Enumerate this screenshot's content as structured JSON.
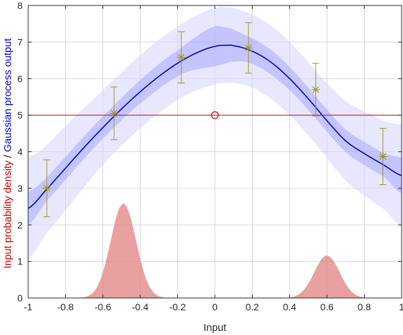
{
  "chart_data": {
    "type": "line",
    "xlabel": "Input",
    "ylabel_parts": [
      {
        "text": "Input probability density",
        "color": "#cc0000"
      },
      {
        "text": " / ",
        "color": "#000000"
      },
      {
        "text": "Gaussian process output",
        "color": "#0000cc"
      }
    ],
    "xlim": [
      -1,
      1
    ],
    "ylim": [
      0,
      8
    ],
    "xticks": [
      -1,
      -0.8,
      -0.6,
      -0.4,
      -0.2,
      0,
      0.2,
      0.4,
      0.6,
      0.8,
      1
    ],
    "xtick_labels": [
      "-1",
      "-0.8",
      "-0.6",
      "-0.4",
      "-0.2",
      "0",
      "0.2",
      "0.4",
      "0.6",
      "0.8",
      "1"
    ],
    "yticks": [
      0,
      1,
      2,
      3,
      4,
      5,
      6,
      7,
      8
    ],
    "ytick_labels": [
      "0",
      "1",
      "2",
      "3",
      "4",
      "5",
      "6",
      "7",
      "8"
    ],
    "grid": true,
    "colors": {
      "mean": "#0000bb",
      "band_inner": "#b5b5ff",
      "band_outer": "#e3e3ff",
      "density": "#e8a0a0",
      "threshold": "#cc0000",
      "measurements": "#9a9a18"
    },
    "gp_mean": {
      "x": [
        -1,
        -0.9,
        -0.8,
        -0.7,
        -0.6,
        -0.5,
        -0.4,
        -0.3,
        -0.2,
        -0.1,
        0,
        0.06,
        0.1,
        0.2,
        0.3,
        0.4,
        0.5,
        0.6,
        0.7,
        0.8,
        0.9,
        1
      ],
      "y": [
        2.45,
        2.98,
        3.55,
        4.12,
        4.66,
        5.17,
        5.64,
        6.06,
        6.42,
        6.7,
        6.88,
        6.91,
        6.9,
        6.75,
        6.45,
        6.0,
        5.45,
        4.85,
        4.3,
        3.95,
        3.65,
        3.35
      ]
    },
    "gp_inner_half_width": {
      "x": [
        -1,
        -0.9,
        -0.55,
        -0.2,
        0.0,
        0.18,
        0.54,
        0.9,
        1
      ],
      "y": [
        0.45,
        0.32,
        0.3,
        0.35,
        0.55,
        0.35,
        0.3,
        0.32,
        0.5
      ]
    },
    "gp_outer_half_width": {
      "x": [
        -1,
        -0.9,
        -0.55,
        -0.2,
        0.0,
        0.18,
        0.54,
        0.9,
        1
      ],
      "y": [
        1.4,
        1.2,
        1.0,
        1.0,
        1.05,
        1.0,
        1.0,
        1.2,
        1.4
      ]
    },
    "measurements": {
      "x": [
        -0.9,
        -0.54,
        -0.18,
        0.18,
        0.54,
        0.9
      ],
      "y": [
        3.0,
        5.05,
        6.58,
        6.84,
        5.7,
        3.87
      ],
      "err": [
        0.78,
        0.72,
        0.7,
        0.69,
        0.72,
        0.77
      ]
    },
    "threshold_y": 5.0,
    "marker_point": {
      "x": 0,
      "y": 5.0
    },
    "density": {
      "components": [
        {
          "mean": -0.49,
          "sd": 0.068,
          "peak": 2.58
        },
        {
          "mean": 0.6,
          "sd": 0.068,
          "peak": 1.16
        }
      ]
    }
  }
}
